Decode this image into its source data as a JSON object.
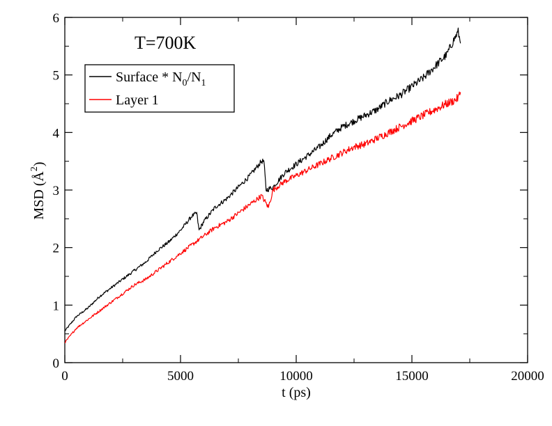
{
  "chart_data": {
    "type": "line",
    "title": "",
    "annotation": "T=700K",
    "xlabel": "t (ps)",
    "ylabel": {
      "prefix": "MSD (",
      "unit": "Å",
      "sup": "2",
      "suffix": ")"
    },
    "xlim": [
      0,
      20000
    ],
    "ylim": [
      0,
      6
    ],
    "xticks": [
      0,
      5000,
      10000,
      15000,
      20000
    ],
    "yticks": [
      0,
      1,
      2,
      3,
      4,
      5,
      6
    ],
    "x_minor_step": 2500,
    "y_minor_step": 0.5,
    "grid": false,
    "legend_position": "top-left",
    "series": [
      {
        "name": {
          "main": "Surface * N",
          "sub1": "0",
          "mid": "/N",
          "sub2": "1"
        },
        "color": "#000000",
        "x": [
          0,
          500,
          1000,
          1500,
          2000,
          2500,
          3000,
          3500,
          4000,
          4500,
          5000,
          5500,
          5700,
          5800,
          6000,
          6500,
          7000,
          7500,
          8000,
          8500,
          8600,
          8700,
          9000,
          9500,
          10000,
          10500,
          11000,
          11500,
          12000,
          12500,
          13000,
          13500,
          14000,
          14500,
          15000,
          15500,
          16000,
          16500,
          16800,
          17000,
          17100
        ],
        "y": [
          0.55,
          0.8,
          0.95,
          1.15,
          1.3,
          1.45,
          1.6,
          1.75,
          1.95,
          2.1,
          2.3,
          2.55,
          2.6,
          2.3,
          2.45,
          2.7,
          2.85,
          3.05,
          3.25,
          3.5,
          3.5,
          3.0,
          3.05,
          3.3,
          3.45,
          3.6,
          3.75,
          3.95,
          4.1,
          4.2,
          4.3,
          4.4,
          4.55,
          4.65,
          4.8,
          4.95,
          5.15,
          5.35,
          5.6,
          5.75,
          5.55
        ]
      },
      {
        "name": {
          "main": "Layer 1"
        },
        "color": "#ff0000",
        "x": [
          0,
          500,
          1000,
          1500,
          2000,
          2500,
          3000,
          3500,
          4000,
          4500,
          5000,
          5500,
          6000,
          6500,
          7000,
          7500,
          8000,
          8500,
          8800,
          9000,
          9500,
          10000,
          10500,
          11000,
          11500,
          12000,
          12500,
          13000,
          13500,
          14000,
          14500,
          15000,
          15500,
          16000,
          16500,
          16800,
          17000,
          17100
        ],
        "y": [
          0.35,
          0.6,
          0.75,
          0.9,
          1.05,
          1.2,
          1.35,
          1.45,
          1.6,
          1.75,
          1.9,
          2.05,
          2.2,
          2.35,
          2.45,
          2.6,
          2.75,
          2.9,
          2.7,
          3.0,
          3.15,
          3.25,
          3.35,
          3.45,
          3.55,
          3.65,
          3.75,
          3.8,
          3.9,
          4.0,
          4.1,
          4.2,
          4.3,
          4.4,
          4.5,
          4.55,
          4.6,
          4.7
        ]
      }
    ]
  }
}
